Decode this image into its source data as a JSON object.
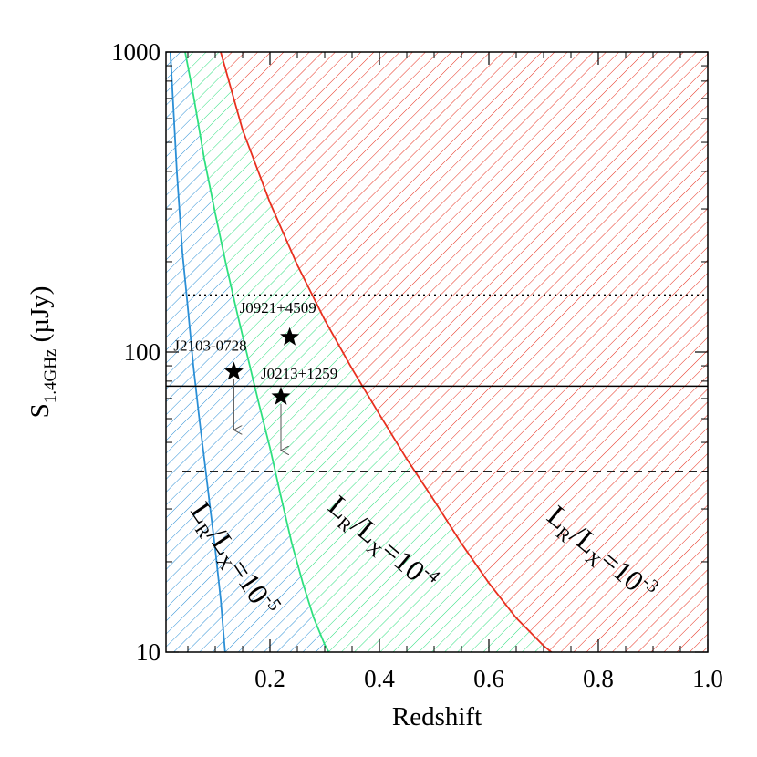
{
  "chart_data": {
    "type": "line",
    "xlabel": "Redshift",
    "ylabel": "S",
    "ylabel_sub": "1.4GHz",
    "ylabel_unit": " (µJy)",
    "xlim": [
      0.01,
      1.0
    ],
    "ylim": [
      10,
      1000
    ],
    "yscale": "log",
    "x_ticks": [
      0.2,
      0.4,
      0.6,
      0.8,
      1.0
    ],
    "x_tick_labels": [
      "0.2",
      "0.4",
      "0.6",
      "0.8",
      "1.0"
    ],
    "y_ticks": [
      10,
      100,
      1000
    ],
    "y_tick_labels": [
      "10",
      "100",
      "1000"
    ],
    "grid": false,
    "colors": {
      "blue": "#2b8fd6",
      "green": "#2fe07f",
      "red": "#e8301f"
    },
    "curves": [
      {
        "color": "blue",
        "x": [
          0.018,
          0.03,
          0.04,
          0.05,
          0.06,
          0.07,
          0.08,
          0.09,
          0.1,
          0.11,
          0.118
        ],
        "y": [
          1000,
          395,
          215,
          140,
          90,
          62,
          44,
          31,
          22,
          15,
          10
        ]
      },
      {
        "color": "green",
        "x": [
          0.045,
          0.06,
          0.08,
          0.1,
          0.12,
          0.14,
          0.16,
          0.18,
          0.2,
          0.22,
          0.24,
          0.26,
          0.28,
          0.3,
          0.31
        ],
        "y": [
          1000,
          720,
          440,
          290,
          195,
          135,
          95,
          67,
          48,
          33,
          23,
          17,
          13,
          10.6,
          9.8
        ]
      },
      {
        "color": "red",
        "x": [
          0.11,
          0.15,
          0.2,
          0.25,
          0.3,
          0.35,
          0.4,
          0.45,
          0.5,
          0.55,
          0.6,
          0.65,
          0.7,
          0.72
        ],
        "y": [
          1000,
          550,
          315,
          195,
          128,
          88,
          62,
          44,
          32,
          23,
          17,
          13,
          10.5,
          9.8
        ]
      }
    ],
    "hlines": [
      {
        "y": 155,
        "style": "dotted",
        "xmin": 0.04
      },
      {
        "y": 77,
        "style": "solid",
        "xmin": 0.01
      },
      {
        "y": 40,
        "style": "dashed",
        "xmin": 0.04
      }
    ],
    "points": [
      {
        "label": "J0921+4509",
        "x": 0.236,
        "y": 112,
        "limit_to": null
      },
      {
        "label": "J2103-0728",
        "x": 0.134,
        "y": 86,
        "limit_to": 55
      },
      {
        "label": "J0213+1259",
        "x": 0.22,
        "y": 71,
        "limit_to": 47
      }
    ],
    "region_labels": [
      {
        "base": "L",
        "sub1": "R",
        "mid": "/L",
        "sub2": "X",
        "eq": "=10",
        "exp": "-5"
      },
      {
        "base": "L",
        "sub1": "R",
        "mid": "/L",
        "sub2": "X",
        "eq": "=10",
        "exp": "-4"
      },
      {
        "base": "L",
        "sub1": "R",
        "mid": "/L",
        "sub2": "X",
        "eq": "=10",
        "exp": "-3"
      }
    ]
  }
}
